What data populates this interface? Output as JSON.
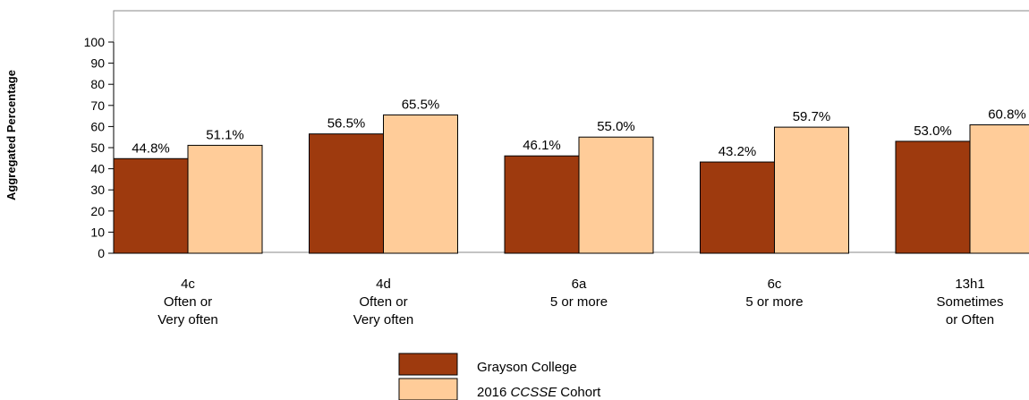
{
  "chart_data": {
    "type": "bar",
    "title": "",
    "ylabel": "Aggregated Percentage",
    "xlabel": "",
    "ylim": [
      0,
      100
    ],
    "yticks": [
      0,
      10,
      20,
      30,
      40,
      50,
      60,
      70,
      80,
      90,
      100
    ],
    "grid": false,
    "legend_position": "bottom-center",
    "categories": [
      [
        "4c",
        "Often or",
        "Very often"
      ],
      [
        "4d",
        "Often or",
        "Very often"
      ],
      [
        "6a",
        "5 or more"
      ],
      [
        "6c",
        "5 or more"
      ],
      [
        "13h1",
        "Sometimes",
        "or Often"
      ]
    ],
    "series": [
      {
        "name": "Grayson College",
        "color": "#9E3A0E",
        "values": [
          44.8,
          56.5,
          46.1,
          43.2,
          53.0
        ],
        "labels": [
          "44.8%",
          "56.5%",
          "46.1%",
          "43.2%",
          "53.0%"
        ]
      },
      {
        "name": "2016 CCSSE Cohort",
        "name_parts": [
          "2016 ",
          "CCSSE",
          "Cohort"
        ],
        "color": "#FFCC99",
        "values": [
          51.1,
          65.5,
          55.0,
          59.7,
          60.8
        ],
        "labels": [
          "51.1%",
          "65.5%",
          "55.0%",
          "59.7%",
          "60.8%"
        ]
      }
    ]
  }
}
